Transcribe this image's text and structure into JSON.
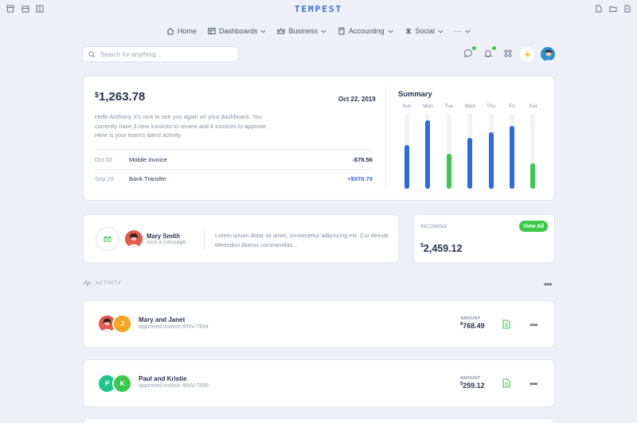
{
  "app": {
    "brand": "TEMPEST"
  },
  "nav": [
    {
      "label": "Home",
      "icon": "home-icon"
    },
    {
      "label": "Dashboards",
      "icon": "dashboard-icon"
    },
    {
      "label": "Business",
      "icon": "crown-icon"
    },
    {
      "label": "Accounting",
      "icon": "calculator-icon"
    },
    {
      "label": "Social",
      "icon": "social-icon"
    },
    {
      "label": "···",
      "icon": "more-icon"
    }
  ],
  "search": {
    "placeholder": "Search for anything..."
  },
  "welcome_card": {
    "balance_symbol": "$",
    "balance": "1,263.78",
    "date": "Oct 22, 2019",
    "message": "Hello Anthony, it's nice to see you again on your dashboard. You currently have 3 new invoices to review and 4 invoices to approve. Here is your team's latest activity.",
    "transactions": [
      {
        "date": "Oct 02",
        "name": "Mobile Invoice",
        "amount": "-$78.56",
        "color": "#283252"
      },
      {
        "date": "Sep 29",
        "name": "Bank Transfer",
        "amount": "+$978.79",
        "color": "#3b6fd8"
      }
    ]
  },
  "summary": {
    "title": "Summary",
    "chart_data": {
      "type": "bar",
      "categories": [
        "Sun",
        "Mon",
        "Tue",
        "Wed",
        "Thu",
        "Fri",
        "Sat"
      ],
      "values": [
        58,
        91,
        46,
        67,
        75,
        83,
        34
      ],
      "ylim": [
        0,
        100
      ],
      "colors": [
        "#2c6be0",
        "#2c6be0",
        "#3cc84a",
        "#2c6be0",
        "#2c6be0",
        "#2c6be0",
        "#3cc84a"
      ],
      "grid": false
    }
  },
  "message_card": {
    "name": "Mary Smith",
    "subtitle": "sent a message",
    "text": "Lorem ipsum dolor sit amet, consectetur adipiscing elit. Cur deinde Metrodori liberos commendas..."
  },
  "incoming_card": {
    "label": "INCOMING",
    "button": "View All",
    "amount_symbol": "$",
    "amount": "2,459.12"
  },
  "activity": {
    "heading": "ACTIVITY",
    "items": [
      {
        "title": "Mary and Janet",
        "subtitle": "approved invoice #INV-7894",
        "amount_label": "AMOUNT",
        "amount_symbol": "$",
        "amount": "768.49",
        "avatars": [
          "photo",
          "J"
        ]
      },
      {
        "title": "Paul and Kristie",
        "subtitle": "approved invoice #INV-7899",
        "amount_label": "AMOUNT",
        "amount_symbol": "$",
        "amount": "259.12",
        "avatars": [
          "P",
          "K"
        ]
      }
    ]
  },
  "colors": {
    "accent": "#3b6fd8",
    "green": "#3cc84a",
    "orange": "#f5a623",
    "teal": "#1fc78d"
  }
}
